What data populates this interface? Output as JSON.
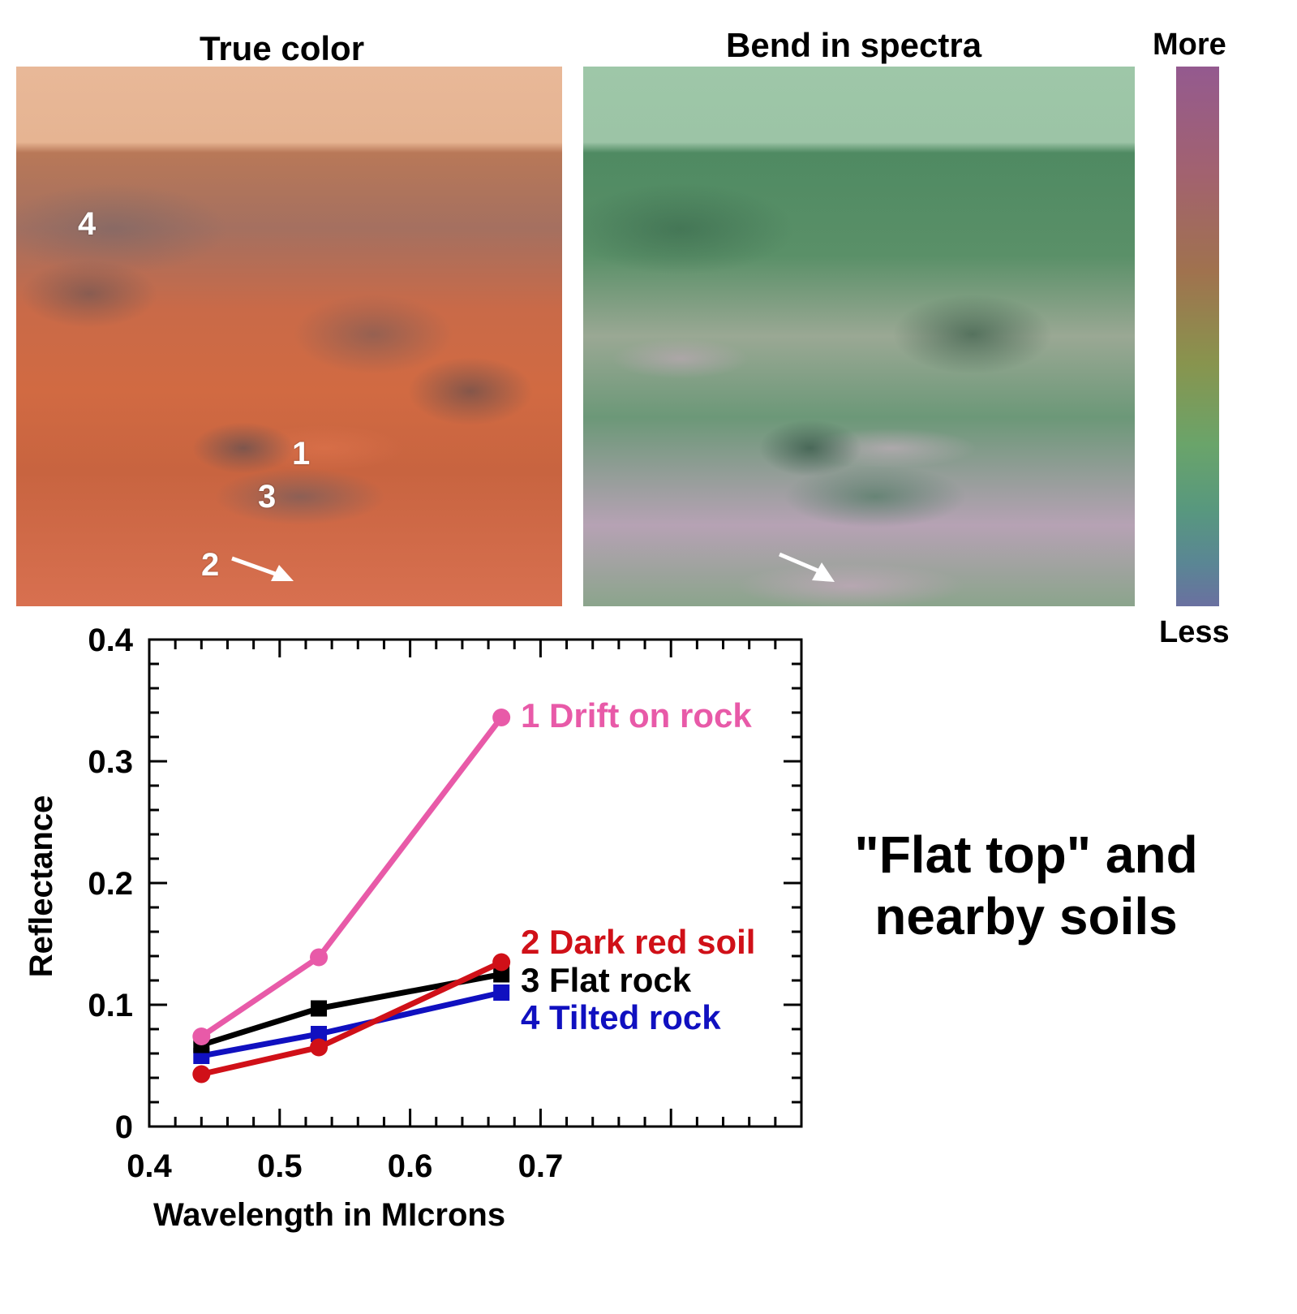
{
  "panels": {
    "true_color": {
      "title": "True color",
      "labels": [
        "1",
        "2",
        "3",
        "4"
      ]
    },
    "bend_in_spectra": {
      "title": "Bend in spectra"
    },
    "colorbar": {
      "top_label": "More",
      "bottom_label": "Less",
      "colors": [
        "#945a8f",
        "#a2626f",
        "#a0724e",
        "#88944e",
        "#6aa46a",
        "#58987e",
        "#5a8694",
        "#6a70a0"
      ]
    }
  },
  "caption": {
    "line1": "\"Flat top\" and",
    "line2": "nearby soils"
  },
  "chart_data": {
    "type": "line",
    "title": "",
    "xlabel": "Wavelength in MIcrons",
    "ylabel": "Reflectance",
    "xlim": [
      0.4,
      0.9
    ],
    "ylim": [
      0,
      0.4
    ],
    "x_ticks": [
      "0.4",
      "0.5",
      "0.6",
      "0.7"
    ],
    "y_ticks": [
      "0",
      "0.1",
      "0.2",
      "0.3",
      "0.4"
    ],
    "grid": false,
    "legend_position": "inline-right-of-lines",
    "x": [
      0.44,
      0.53,
      0.67
    ],
    "series": [
      {
        "name": "1 Drift on rock",
        "color": "#e85aa8",
        "marker": "circle",
        "values": [
          0.074,
          0.139,
          0.336
        ]
      },
      {
        "name": "2 Dark red soil",
        "color": "#d01018",
        "marker": "circle",
        "values": [
          0.043,
          0.065,
          0.135
        ]
      },
      {
        "name": "3 Flat rock",
        "color": "#000000",
        "marker": "square",
        "values": [
          0.067,
          0.097,
          0.125
        ]
      },
      {
        "name": "4 Tilted rock",
        "color": "#1010c0",
        "marker": "square",
        "values": [
          0.058,
          0.076,
          0.11
        ]
      }
    ]
  }
}
